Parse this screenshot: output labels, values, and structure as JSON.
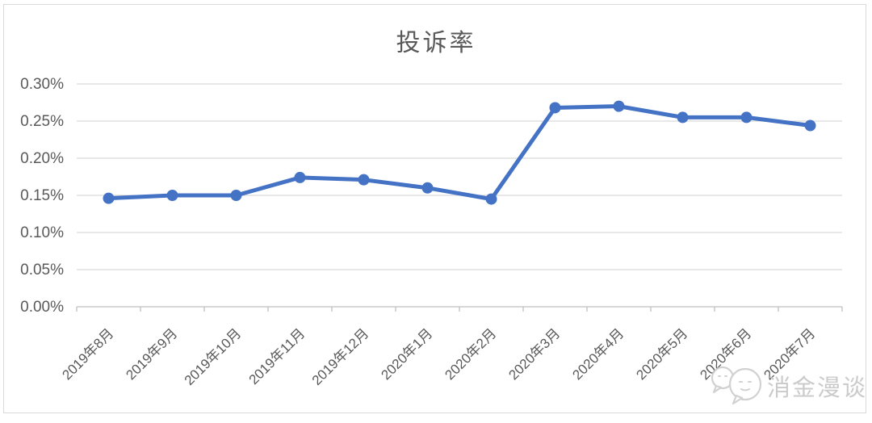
{
  "chart_data": {
    "type": "line",
    "title": "投诉率",
    "categories": [
      "2019年8月",
      "2019年9月",
      "2019年10月",
      "2019年11月",
      "2019年12月",
      "2020年1月",
      "2020年2月",
      "2020年3月",
      "2020年4月",
      "2020年5月",
      "2020年6月",
      "2020年7月"
    ],
    "values": [
      0.146,
      0.15,
      0.15,
      0.174,
      0.171,
      0.16,
      0.145,
      0.268,
      0.27,
      0.255,
      0.255,
      0.244
    ],
    "values_unit": "percent",
    "xlabel": "",
    "ylabel": "",
    "ylim": [
      0,
      0.3
    ],
    "ytick_step": 0.05,
    "ytick_labels": [
      "0.00%",
      "0.05%",
      "0.10%",
      "0.15%",
      "0.20%",
      "0.25%",
      "0.30%"
    ],
    "grid": true,
    "legend": "none",
    "marker": "circle",
    "colors": {
      "line": "#4472C4",
      "gridline": "#d9d9d9",
      "axis": "#bfbfbf",
      "axis_text": "#595959",
      "title_text": "#595959",
      "border": "#d9d9d9"
    }
  },
  "watermark": {
    "text": "消金漫谈",
    "icon": "chat-bubbles-logo",
    "color": "#c6c6c6"
  }
}
